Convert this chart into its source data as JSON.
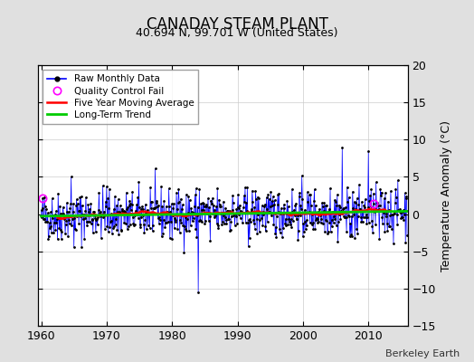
{
  "title": "CANADAY STEAM PLANT",
  "subtitle": "40.694 N, 99.701 W (United States)",
  "ylabel": "Temperature Anomaly (°C)",
  "watermark": "Berkeley Earth",
  "xlim": [
    1959.5,
    2016.0
  ],
  "ylim": [
    -15,
    20
  ],
  "yticks": [
    -15,
    -10,
    -5,
    0,
    5,
    10,
    15,
    20
  ],
  "xticks": [
    1960,
    1970,
    1980,
    1990,
    2000,
    2010
  ],
  "bg_color": "#e0e0e0",
  "plot_bg": "#ffffff",
  "line_color": "#0000ff",
  "dot_color": "#000000",
  "ma_color": "#ff0000",
  "trend_color": "#00cc00",
  "qc_color": "#ff00ff",
  "seed": 42,
  "start_year": 1960,
  "end_year": 2015,
  "trend_slope": 0.012,
  "trend_intercept": -0.25,
  "qc_fail_indices": [
    3,
    610
  ]
}
